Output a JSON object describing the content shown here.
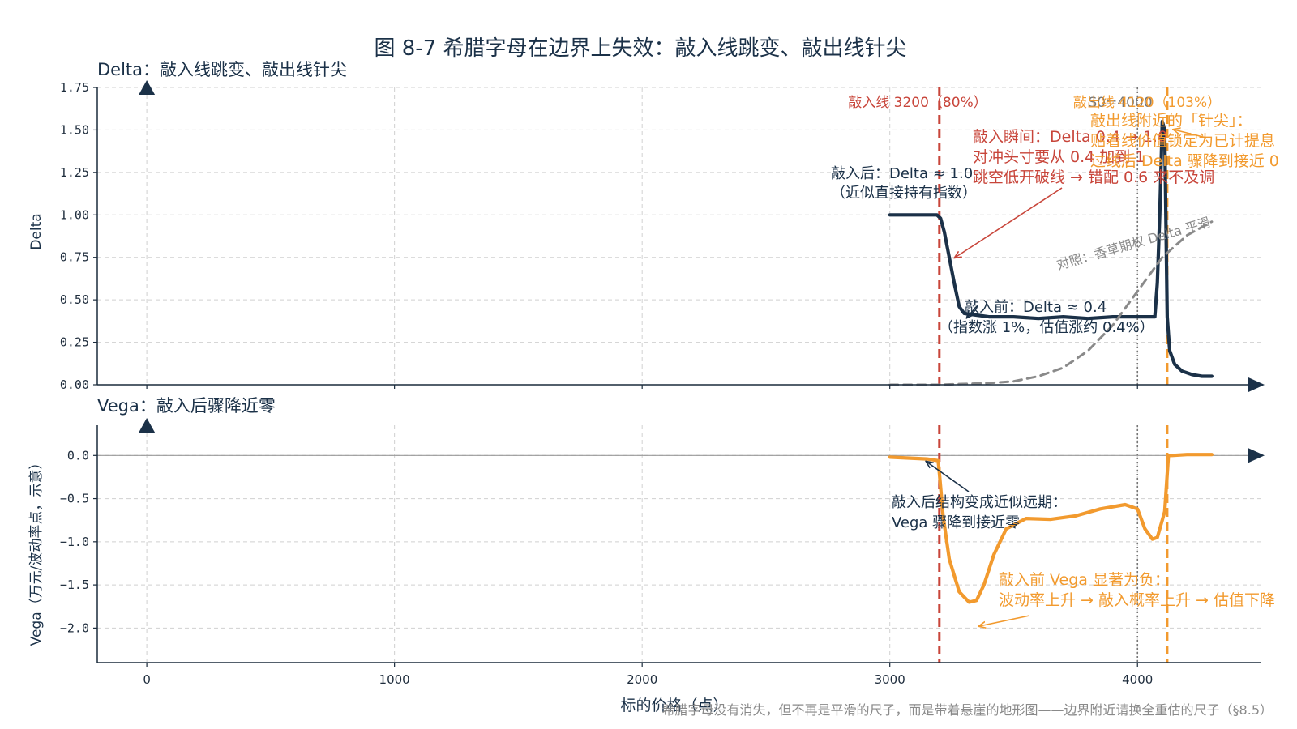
{
  "figure": {
    "title": "图 8-7 希腊字母在边界上失效：敲入线跳变、敲出线针尖",
    "footer": "希腊字母没有消失，但不再是平滑的尺子，而是带着悬崖的地形图——边界附近请换全重估的尺子（§8.5）",
    "xlabel": "标的价格（点）",
    "colors": {
      "delta": "#1b3148",
      "vega": "#f29a2e",
      "knock_in": "#c8453a",
      "knock_out": "#f29a2e",
      "vanilla": "#8a8a8a",
      "s0_line": "#777777"
    }
  },
  "chart_data": [
    {
      "type": "line",
      "title": "Delta：敲入线跳变、敲出线针尖",
      "ylabel": "Delta",
      "xlim": [
        -200,
        4500
      ],
      "ylim": [
        0,
        1.75
      ],
      "x_ticks": [
        0,
        1000,
        2000,
        3000,
        4000
      ],
      "y_ticks": [
        "0.00",
        "0.25",
        "0.50",
        "0.75",
        "1.00",
        "1.25",
        "1.50",
        "1.75"
      ],
      "grid": true,
      "series": [
        {
          "style": "solid",
          "x": [
            3000,
            3190,
            3205,
            3220,
            3240,
            3260,
            3280,
            3300,
            3350,
            3400,
            3500,
            3600,
            3700,
            3800,
            3900,
            4000,
            4060,
            4070,
            4080,
            4090,
            4100,
            4110,
            4120,
            4125,
            4130,
            4150,
            4180,
            4220,
            4260,
            4300
          ],
          "y": [
            1.0,
            1.0,
            0.98,
            0.9,
            0.75,
            0.6,
            0.46,
            0.42,
            0.41,
            0.4,
            0.4,
            0.39,
            0.4,
            0.39,
            0.4,
            0.4,
            0.4,
            0.4,
            0.6,
            1.0,
            1.55,
            1.5,
            0.4,
            0.3,
            0.2,
            0.12,
            0.08,
            0.06,
            0.05,
            0.05
          ]
        },
        {
          "name": "对照：香草期权 Delta 平滑",
          "style": "dashed",
          "x": [
            3000,
            3200,
            3400,
            3500,
            3600,
            3700,
            3800,
            3900,
            4000,
            4100,
            4200,
            4300
          ],
          "y": [
            0.0,
            0.0,
            0.01,
            0.02,
            0.05,
            0.1,
            0.2,
            0.35,
            0.55,
            0.75,
            0.88,
            0.96
          ]
        }
      ],
      "vlines": [
        {
          "x": 3200,
          "style": "dashed",
          "label": "敲入线 3200（80%）"
        },
        {
          "x": 4000,
          "style": "dotted",
          "label": "S0=4000"
        },
        {
          "x": 4120,
          "style": "dashed",
          "label": "敲出线 4120（103%）"
        }
      ],
      "annotations": [
        {
          "lines": [
            "敲入后：Delta ≈ 1.0",
            "（近似直接持有指数）"
          ]
        },
        {
          "lines": [
            "敲入瞬间：Delta 0.4 → 1.0",
            "对冲头寸要从 0.4 加到 1",
            "跳空低开破线 → 错配 0.6 来不及调"
          ]
        },
        {
          "lines": [
            "敲入前：Delta ≈ 0.4",
            "（指数涨 1%，估值涨约 0.4%）"
          ]
        },
        {
          "lines": [
            "敲出线附近的「针尖」：",
            "贴着线价值锁定为已计提息",
            "过线后 Delta 骤降到接近 0"
          ]
        }
      ]
    },
    {
      "type": "line",
      "title": "Vega：敲入后骤降近零",
      "ylabel": "Vega（万元/波动率点，示意）",
      "xlim": [
        -200,
        4500
      ],
      "ylim": [
        -2.4,
        0.35
      ],
      "x_ticks": [
        0,
        1000,
        2000,
        3000,
        4000
      ],
      "y_ticks": [
        "0.0",
        "−0.5",
        "−1.0",
        "−1.5",
        "−2.0"
      ],
      "grid": true,
      "series": [
        {
          "style": "solid",
          "x": [
            3000,
            3150,
            3195,
            3200,
            3215,
            3240,
            3280,
            3320,
            3350,
            3380,
            3420,
            3470,
            3550,
            3650,
            3750,
            3850,
            3950,
            4000,
            4030,
            4060,
            4080,
            4100,
            4110,
            4118,
            4125,
            4140,
            4200,
            4300
          ],
          "y": [
            -0.02,
            -0.04,
            -0.06,
            -0.2,
            -0.7,
            -1.2,
            -1.58,
            -1.7,
            -1.68,
            -1.5,
            -1.15,
            -0.85,
            -0.73,
            -0.74,
            -0.7,
            -0.62,
            -0.57,
            -0.62,
            -0.85,
            -0.97,
            -0.95,
            -0.75,
            -0.65,
            -0.3,
            0.0,
            0.0,
            0.01,
            0.01
          ]
        }
      ],
      "vlines": [
        {
          "x": 3200,
          "style": "dashed"
        },
        {
          "x": 4000,
          "style": "dotted"
        },
        {
          "x": 4120,
          "style": "dashed"
        }
      ],
      "annotations": [
        {
          "lines": [
            "敲入后结构变成近似远期：",
            "Vega 骤降到接近零"
          ]
        },
        {
          "lines": [
            "敲入前 Vega 显著为负：",
            "波动率上升 → 敲入概率上升 → 估值下降"
          ]
        }
      ]
    }
  ]
}
